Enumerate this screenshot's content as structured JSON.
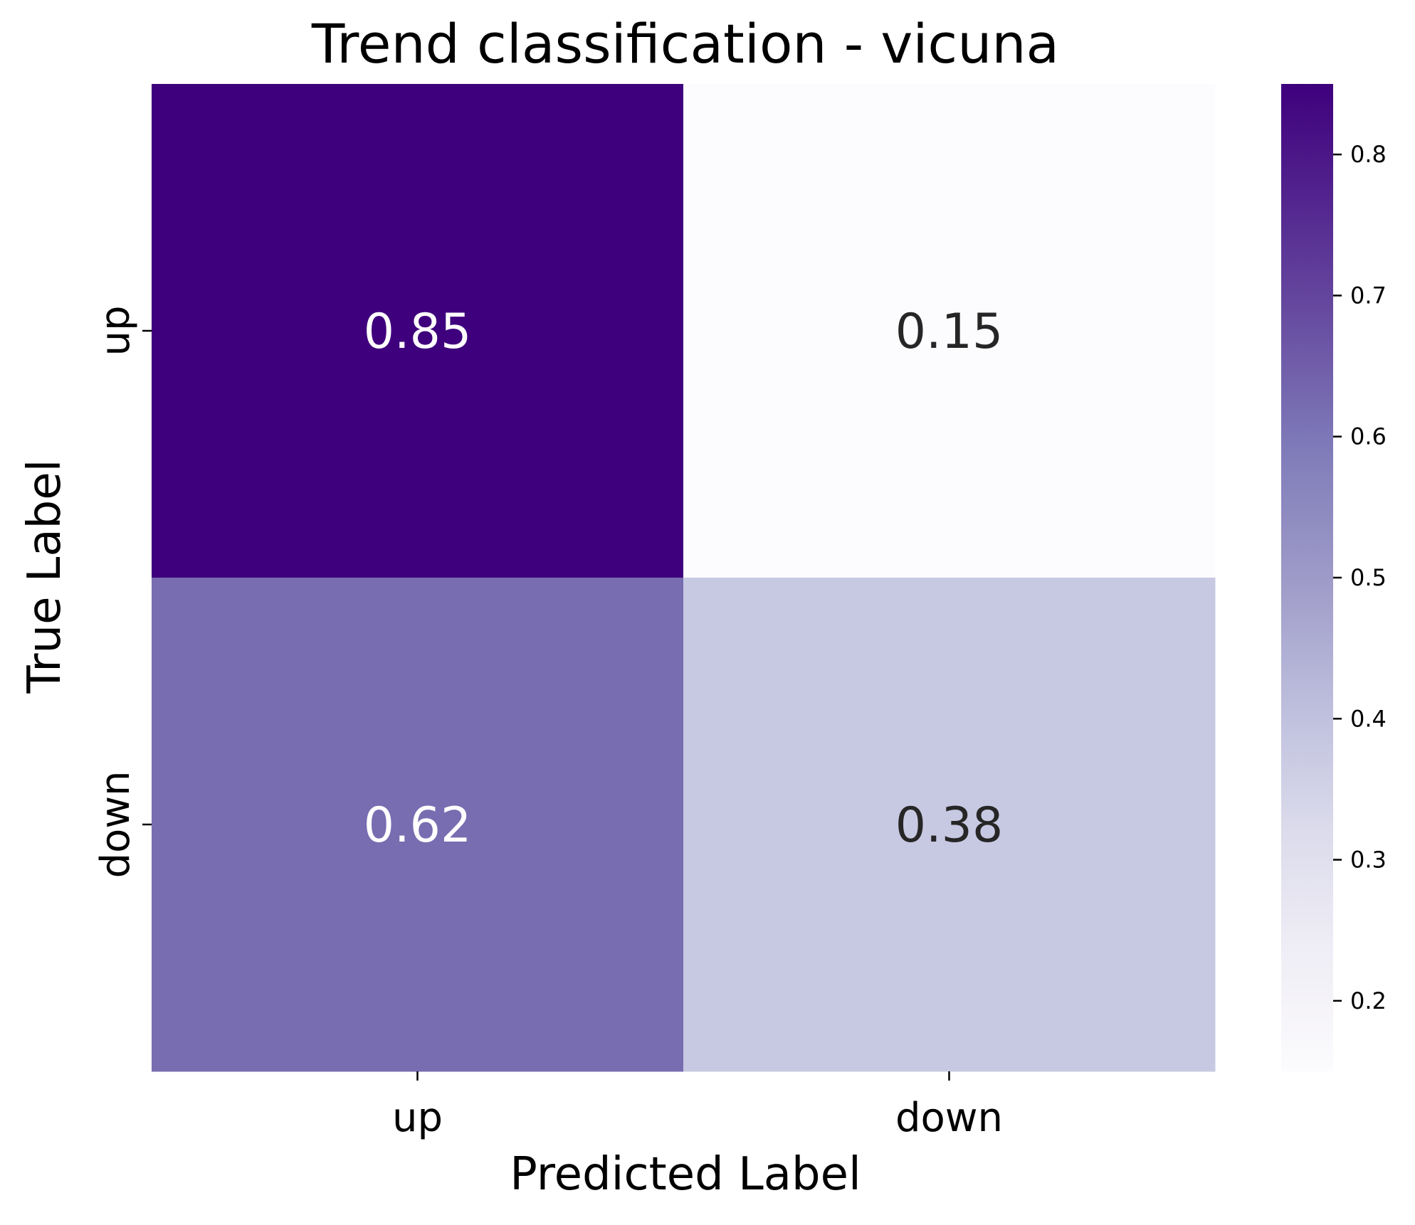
{
  "chart_data": {
    "type": "heatmap",
    "title": "Trend classification - vicuna",
    "xlabel": "Predicted Label",
    "ylabel": "True Label",
    "x_categories": [
      "up",
      "down"
    ],
    "y_categories": [
      "up",
      "down"
    ],
    "values": [
      [
        0.85,
        0.15
      ],
      [
        0.62,
        0.38
      ]
    ],
    "cell_labels": [
      [
        "0.85",
        "0.15"
      ],
      [
        "0.62",
        "0.38"
      ]
    ],
    "colorbar": {
      "colormap": "Purples",
      "range": [
        0.15,
        0.85
      ],
      "ticks": [
        0.2,
        0.3,
        0.4,
        0.5,
        0.6,
        0.7,
        0.8
      ],
      "tick_labels": [
        "0.2",
        "0.3",
        "0.4",
        "0.5",
        "0.6",
        "0.7",
        "0.8"
      ],
      "low_color": "#fcfbfd",
      "high_color": "#3f007d"
    },
    "grid": false
  }
}
